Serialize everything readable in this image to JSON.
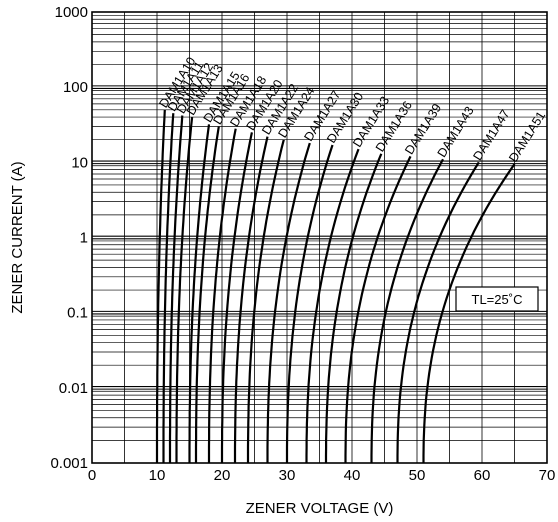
{
  "chart_data": {
    "type": "line",
    "title": "",
    "xlabel": "ZENER VOLTAGE (V)",
    "ylabel": "ZENER CURRENT (A)",
    "xlim": [
      0,
      70
    ],
    "ylim": [
      0.001,
      1000
    ],
    "y_scale": "log",
    "grid": true,
    "x_tick_labels": [
      "0",
      "10",
      "20",
      "30",
      "40",
      "50",
      "60",
      "70"
    ],
    "y_tick_labels": [
      "0.001",
      "0.01",
      "0.1",
      "1",
      "10",
      "100",
      "1000"
    ],
    "annotation": "TL=25˚C",
    "series": [
      {
        "name": "DAM1A10",
        "vz": 10.0,
        "x_end": 11.2,
        "y_end": 50
      },
      {
        "name": "DAM1A11",
        "vz": 11.0,
        "x_end": 12.5,
        "y_end": 45
      },
      {
        "name": "DAM1A12",
        "vz": 12.0,
        "x_end": 13.9,
        "y_end": 42
      },
      {
        "name": "DAM1A13",
        "vz": 13.0,
        "x_end": 15.4,
        "y_end": 40
      },
      {
        "name": "DAM1A15",
        "vz": 15.0,
        "x_end": 18.0,
        "y_end": 32
      },
      {
        "name": "DAM1A16",
        "vz": 16.0,
        "x_end": 19.5,
        "y_end": 30
      },
      {
        "name": "DAM1A18",
        "vz": 18.0,
        "x_end": 22.1,
        "y_end": 28
      },
      {
        "name": "DAM1A20",
        "vz": 20.0,
        "x_end": 24.6,
        "y_end": 25
      },
      {
        "name": "DAM1A22",
        "vz": 22.0,
        "x_end": 27.0,
        "y_end": 22
      },
      {
        "name": "DAM1A24",
        "vz": 24.0,
        "x_end": 29.5,
        "y_end": 20
      },
      {
        "name": "DAM1A27",
        "vz": 27.0,
        "x_end": 33.5,
        "y_end": 18
      },
      {
        "name": "DAM1A30",
        "vz": 30.0,
        "x_end": 37.0,
        "y_end": 17
      },
      {
        "name": "DAM1A33",
        "vz": 33.0,
        "x_end": 41.0,
        "y_end": 15
      },
      {
        "name": "DAM1A36",
        "vz": 36.0,
        "x_end": 44.5,
        "y_end": 13
      },
      {
        "name": "DAM1A39",
        "vz": 39.0,
        "x_end": 49.0,
        "y_end": 12
      },
      {
        "name": "DAM1A43",
        "vz": 43.0,
        "x_end": 54.0,
        "y_end": 11
      },
      {
        "name": "DAM1A47",
        "vz": 47.0,
        "x_end": 59.5,
        "y_end": 10
      },
      {
        "name": "DAM1A51",
        "vz": 51.0,
        "x_end": 65.0,
        "y_end": 9.5
      }
    ]
  }
}
